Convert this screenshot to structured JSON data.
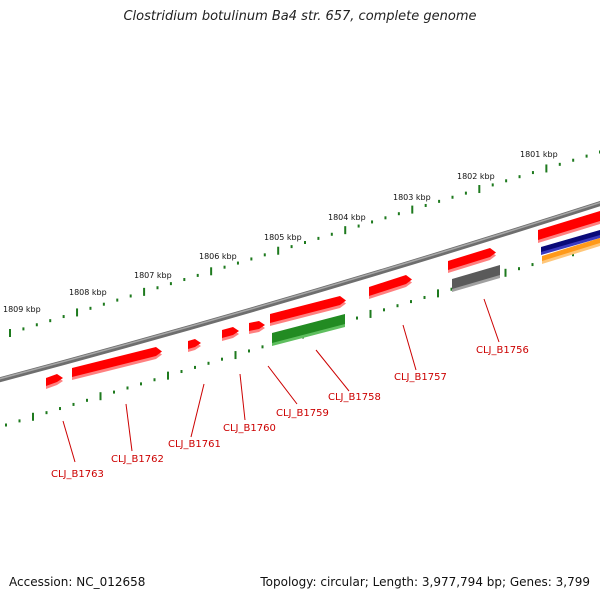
{
  "title": "Clostridium botulinum Ba4 str. 657, complete genome",
  "footer": {
    "accession": "Accession: NC_012658",
    "summary": "Topology: circular; Length: 3,977,794 bp; Genes: 3,799"
  },
  "colors": {
    "background": "#ffffff",
    "backbone": "#808080",
    "gene_red": "#ff0000",
    "gene_green": "#228b22",
    "gene_gray": "#5a5a5a",
    "gene_navy": "#0a0a78",
    "gene_orange": "#ff9a1a",
    "tick_green": "#1e7a1e",
    "label_red": "#cc0000",
    "kbp_text": "#111111"
  },
  "kbp_marks": [
    "1809 kbp",
    "1808 kbp",
    "1807 kbp",
    "1806 kbp",
    "1805 kbp",
    "1804 kbp",
    "1803 kbp",
    "1802 kbp",
    "1801 kbp"
  ],
  "genes": [
    {
      "id": "CLJ_B1763",
      "strand": "forward",
      "color": "red"
    },
    {
      "id": "CLJ_B1762",
      "strand": "forward",
      "color": "red"
    },
    {
      "id": "CLJ_B1761",
      "strand": "forward",
      "color": "red"
    },
    {
      "id": "CLJ_B1760",
      "strand": "forward",
      "color": "red"
    },
    {
      "id": "CLJ_B1759",
      "strand": "forward",
      "color": "red"
    },
    {
      "id": "CLJ_B1758",
      "strand": "forward",
      "color": "red"
    },
    {
      "id": "CLJ_B1757",
      "strand": "forward",
      "color": "red"
    },
    {
      "id": "CLJ_B1756",
      "strand": "forward",
      "color": "red"
    }
  ],
  "features": [
    {
      "name": "feature-green",
      "color": "green"
    },
    {
      "name": "feature-gray",
      "color": "gray"
    },
    {
      "name": "feature-red-right",
      "color": "red"
    },
    {
      "name": "feature-navy",
      "color": "navy"
    },
    {
      "name": "feature-orange",
      "color": "orange"
    }
  ]
}
